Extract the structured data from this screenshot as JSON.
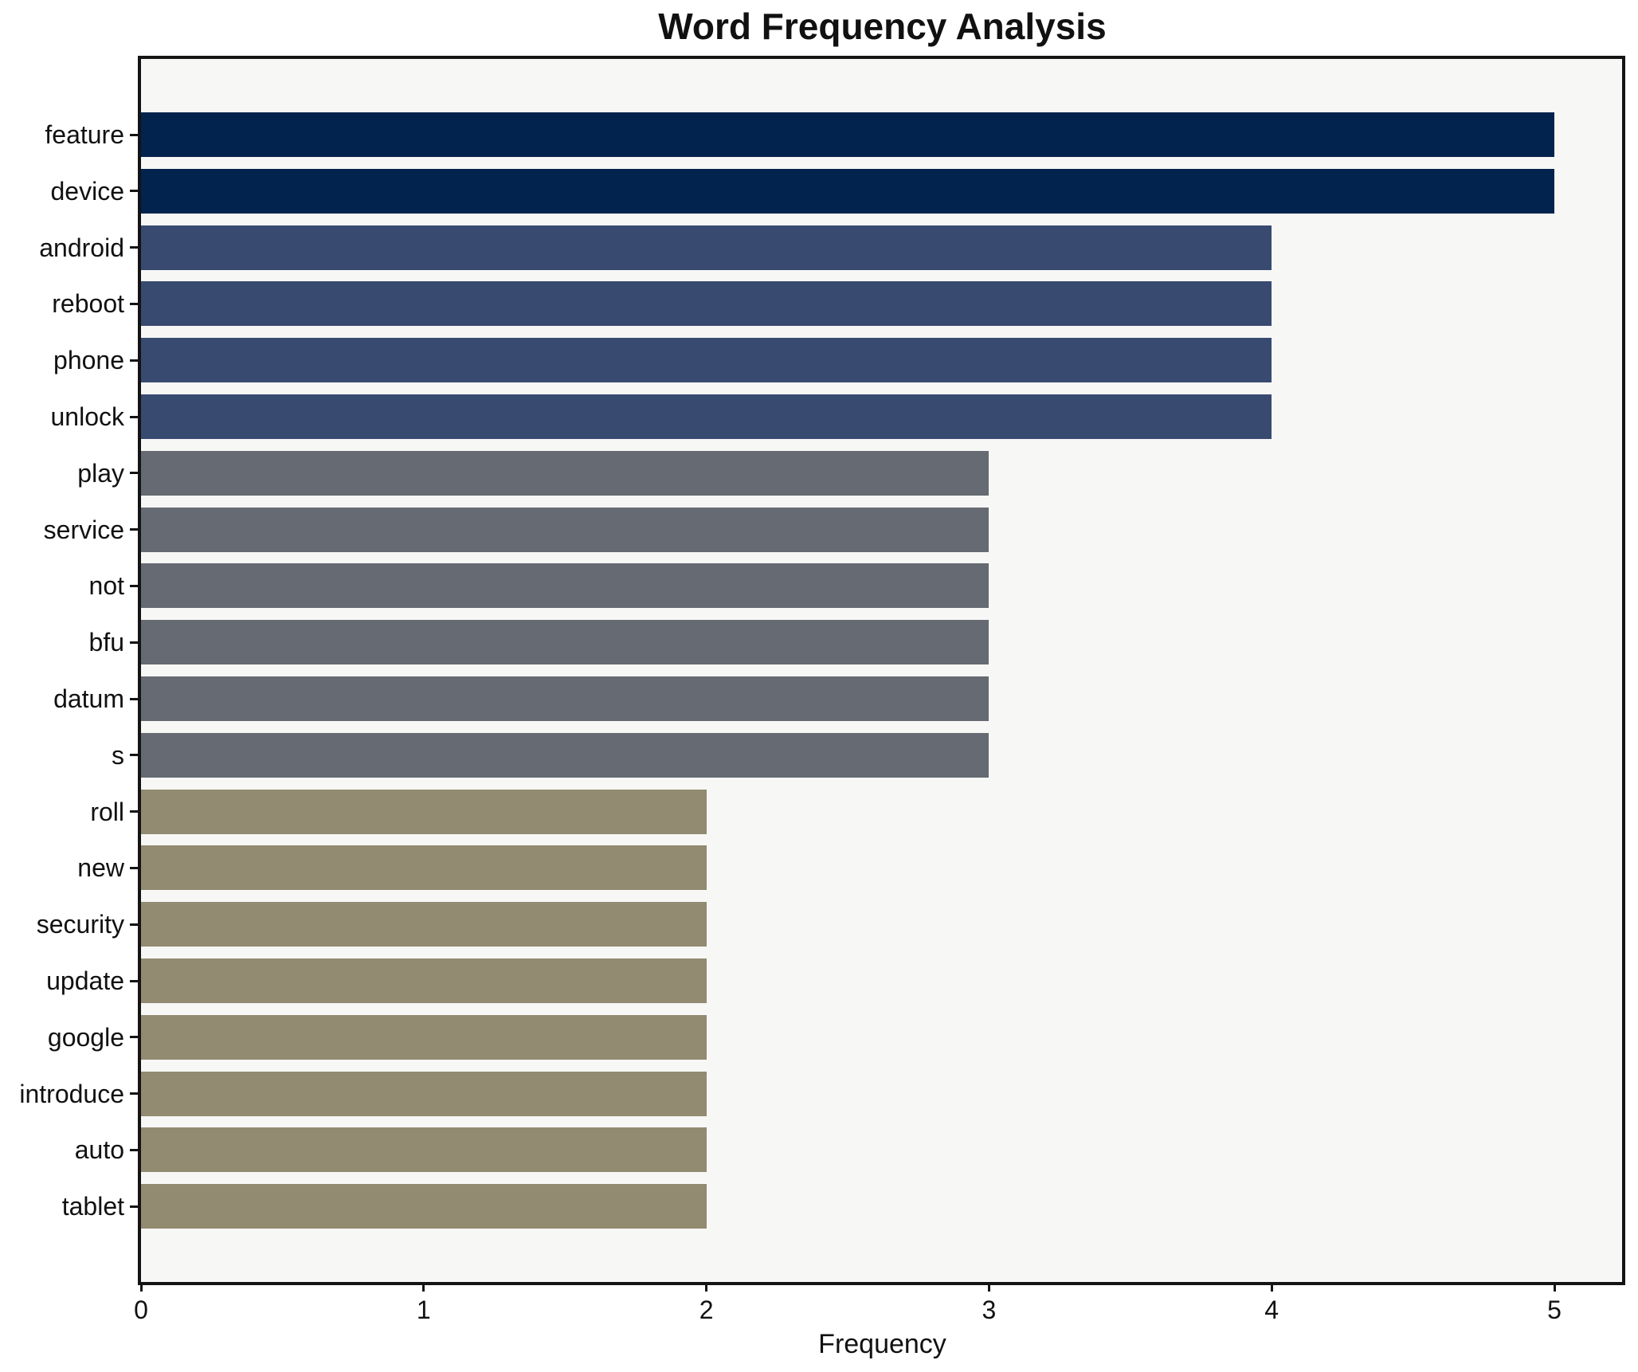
{
  "chart_data": {
    "type": "bar",
    "orientation": "horizontal",
    "title": "Word Frequency Analysis",
    "xlabel": "Frequency",
    "ylabel": "",
    "categories": [
      "feature",
      "device",
      "android",
      "reboot",
      "phone",
      "unlock",
      "play",
      "service",
      "not",
      "bfu",
      "datum",
      "s",
      "roll",
      "new",
      "security",
      "update",
      "google",
      "introduce",
      "auto",
      "tablet"
    ],
    "values": [
      5,
      5,
      4,
      4,
      4,
      4,
      3,
      3,
      3,
      3,
      3,
      3,
      2,
      2,
      2,
      2,
      2,
      2,
      2,
      2
    ],
    "xticks": [
      0,
      1,
      2,
      3,
      4,
      5
    ],
    "xlim": [
      0,
      5.25
    ],
    "grid": false,
    "legend": null,
    "value_colors": {
      "5": "#02234d",
      "4": "#394a71",
      "3": "#666a72",
      "2": "#928a71"
    },
    "plot_background": "#f7f7f5",
    "spine_color": "#141414"
  }
}
